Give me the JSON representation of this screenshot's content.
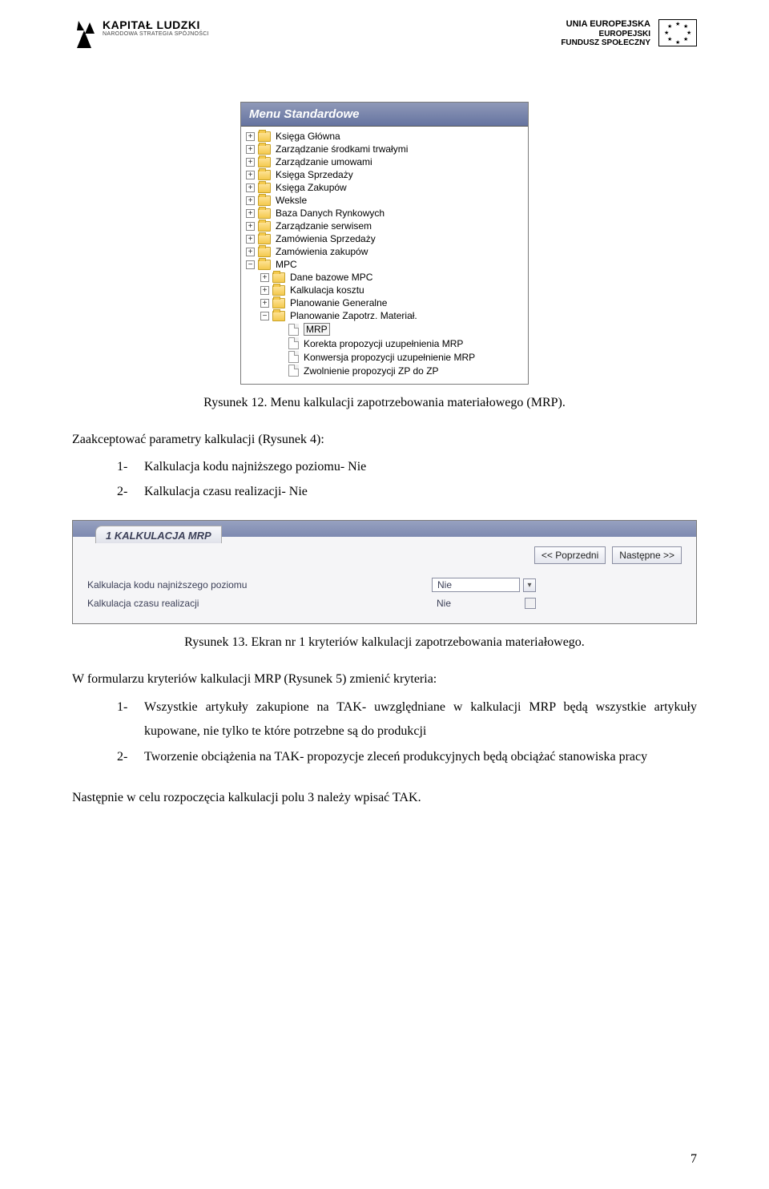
{
  "header": {
    "left_logo": {
      "line1": "KAPITAŁ LUDZKI",
      "line2": "NARODOWA STRATEGIA SPÓJNOŚCI"
    },
    "right_logo": {
      "line1": "UNIA EUROPEJSKA",
      "line2": "EUROPEJSKI",
      "line3": "FUNDUSZ SPOŁECZNY"
    }
  },
  "menu_shot": {
    "title": "Menu Standardowe",
    "items": [
      {
        "exp": "+",
        "icon": "folder",
        "indent": 1,
        "label": "Księga Główna"
      },
      {
        "exp": "+",
        "icon": "folder",
        "indent": 1,
        "label": "Zarządzanie środkami trwałymi"
      },
      {
        "exp": "+",
        "icon": "folder",
        "indent": 1,
        "label": "Zarządzanie umowami"
      },
      {
        "exp": "+",
        "icon": "folder",
        "indent": 1,
        "label": "Księga Sprzedaży"
      },
      {
        "exp": "+",
        "icon": "folder",
        "indent": 1,
        "label": "Księga Zakupów"
      },
      {
        "exp": "+",
        "icon": "folder",
        "indent": 1,
        "label": "Weksle"
      },
      {
        "exp": "+",
        "icon": "folder",
        "indent": 1,
        "label": "Baza Danych Rynkowych"
      },
      {
        "exp": "+",
        "icon": "folder",
        "indent": 1,
        "label": "Zarządzanie serwisem"
      },
      {
        "exp": "+",
        "icon": "folder",
        "indent": 1,
        "label": "Zamówienia Sprzedaży"
      },
      {
        "exp": "+",
        "icon": "folder",
        "indent": 1,
        "label": "Zamówienia zakupów"
      },
      {
        "exp": "−",
        "icon": "folder",
        "indent": 1,
        "label": "MPC"
      },
      {
        "exp": "+",
        "icon": "folder",
        "indent": 2,
        "label": "Dane bazowe MPC"
      },
      {
        "exp": "+",
        "icon": "folder",
        "indent": 2,
        "label": "Kalkulacja kosztu"
      },
      {
        "exp": "+",
        "icon": "folder",
        "indent": 2,
        "label": "Planowanie Generalne"
      },
      {
        "exp": "−",
        "icon": "folder",
        "indent": 2,
        "label": "Planowanie Zapotrz. Materiał."
      },
      {
        "exp": "",
        "icon": "file",
        "indent": 3,
        "label": "MRP",
        "selected": true
      },
      {
        "exp": "",
        "icon": "file",
        "indent": 3,
        "label": "Korekta propozycji uzupełnienia MRP"
      },
      {
        "exp": "",
        "icon": "file",
        "indent": 3,
        "label": "Konwersja propozycji uzupełnienie MRP"
      },
      {
        "exp": "",
        "icon": "file",
        "indent": 3,
        "label": "Zwolnienie propozycji ZP do ZP"
      }
    ]
  },
  "caption1": "Rysunek 12. Menu kalkulacji zapotrzebowania materiałowego (MRP).",
  "para1": "Zaakceptować parametry kalkulacji (Rysunek 4):",
  "list1": [
    {
      "n": "1-",
      "t": "Kalkulacja kodu najniższego poziomu- Nie"
    },
    {
      "n": "2-",
      "t": "Kalkulacja czasu realizacji- Nie"
    }
  ],
  "kalk_shot": {
    "tab": "1 KALKULACJA MRP",
    "btn_prev": "<< Poprzedni",
    "btn_next": "Następne >>",
    "rows": [
      {
        "label": "Kalkulacja kodu najniższego poziomu",
        "value": "Nie",
        "type": "dropdown"
      },
      {
        "label": "Kalkulacja czasu realizacji",
        "value": "Nie",
        "type": "check"
      }
    ]
  },
  "caption2": "Rysunek 13. Ekran nr 1 kryteriów kalkulacji zapotrzebowania materiałowego.",
  "para2": "W formularzu kryteriów kalkulacji MRP (Rysunek 5) zmienić kryteria:",
  "list2": [
    {
      "n": "1-",
      "t": "Wszystkie artykuły zakupione na TAK- uwzględniane w kalkulacji MRP będą wszystkie artykuły kupowane, nie tylko te które potrzebne są do produkcji"
    },
    {
      "n": "2-",
      "t": "Tworzenie obciążenia na TAK- propozycje zleceń produkcyjnych będą obciążać stanowiska pracy"
    }
  ],
  "para3": "Następnie w celu rozpoczęcia kalkulacji polu 3 należy wpisać TAK.",
  "page_num": "7",
  "colors": {
    "menu_header_grad_from": "#8f99b8",
    "menu_header_grad_to": "#6573a0",
    "panel_bg": "#f5f5f7",
    "button_border": "#8b8fa3"
  }
}
